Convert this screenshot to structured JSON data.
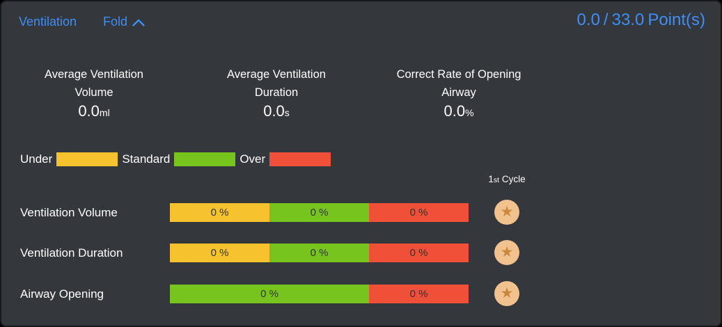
{
  "header": {
    "title": "Ventilation",
    "fold_label": "Fold",
    "score_current": "0.0",
    "score_separator": "/",
    "score_total": "33.0",
    "score_unit": "Point(s)"
  },
  "stats": [
    {
      "title_line1": "Average Ventilation",
      "title_line2": "Volume",
      "value": "0.0",
      "unit": "ml"
    },
    {
      "title_line1": "Average Ventilation",
      "title_line2": "Duration",
      "value": "0.0",
      "unit": "s"
    },
    {
      "title_line1": "Correct Rate of Opening",
      "title_line2": "Airway",
      "value": "0.0",
      "unit": "%"
    }
  ],
  "legend": {
    "items": [
      {
        "label": "Under",
        "color_key": "under"
      },
      {
        "label": "Standard",
        "color_key": "standard"
      },
      {
        "label": "Over",
        "color_key": "over"
      }
    ]
  },
  "cycle_header": {
    "number": "1",
    "ordinal": "st",
    "label": "Cycle"
  },
  "rows": [
    {
      "label": "Ventilation Volume",
      "segments": [
        {
          "color_key": "under",
          "text": "0 %",
          "width_percent": 33.33
        },
        {
          "color_key": "standard",
          "text": "0 %",
          "width_percent": 33.34
        },
        {
          "color_key": "over",
          "text": "0 %",
          "width_percent": 33.33
        }
      ],
      "star": "star-icon"
    },
    {
      "label": "Ventilation Duration",
      "segments": [
        {
          "color_key": "under",
          "text": "0 %",
          "width_percent": 33.33
        },
        {
          "color_key": "standard",
          "text": "0 %",
          "width_percent": 33.34
        },
        {
          "color_key": "over",
          "text": "0 %",
          "width_percent": 33.33
        }
      ],
      "star": "star-icon"
    },
    {
      "label": "Airway Opening",
      "segments": [
        {
          "color_key": "standard",
          "text": "0 %",
          "width_percent": 66.67
        },
        {
          "color_key": "over",
          "text": "0 %",
          "width_percent": 33.33
        }
      ],
      "star": "star-icon"
    }
  ],
  "colors": {
    "accent_blue": "#3e8ef5",
    "under": "#f6c22e",
    "standard": "#77c41f",
    "over": "#f04f38",
    "star_badge_bg": "#f2c28e",
    "star_icon": "#c9883c"
  }
}
